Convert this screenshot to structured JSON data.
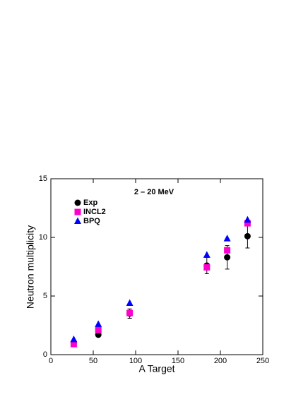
{
  "chart_data": {
    "type": "scatter",
    "xlabel": "A Target",
    "ylabel": "Neutron multiplicity",
    "annotation": "2 – 20 MeV",
    "xlim": [
      0,
      250
    ],
    "xticks": [
      0,
      50,
      100,
      150,
      200,
      250
    ],
    "ylim": [
      0,
      15
    ],
    "yticks": [
      0,
      5,
      10,
      15
    ],
    "legend": "upper left",
    "series": [
      {
        "name": "Exp",
        "marker": "circle",
        "color": "#000000",
        "x": [
          27,
          56,
          93,
          184,
          208,
          232
        ],
        "values": [
          1.0,
          1.7,
          3.5,
          7.6,
          8.3,
          10.1
        ],
        "errors": [
          0.1,
          0.15,
          0.4,
          0.7,
          1.0,
          1.0
        ]
      },
      {
        "name": "INCL2",
        "marker": "square",
        "color": "#ff00cc",
        "x": [
          27,
          56,
          93,
          184,
          208,
          232
        ],
        "values": [
          0.9,
          2.1,
          3.55,
          7.45,
          8.9,
          11.2
        ]
      },
      {
        "name": "BPQ",
        "marker": "triangle",
        "color": "#0000ff",
        "x": [
          27,
          56,
          93,
          184,
          208,
          232
        ],
        "values": [
          1.3,
          2.6,
          4.4,
          8.5,
          9.9,
          11.5
        ]
      }
    ]
  }
}
